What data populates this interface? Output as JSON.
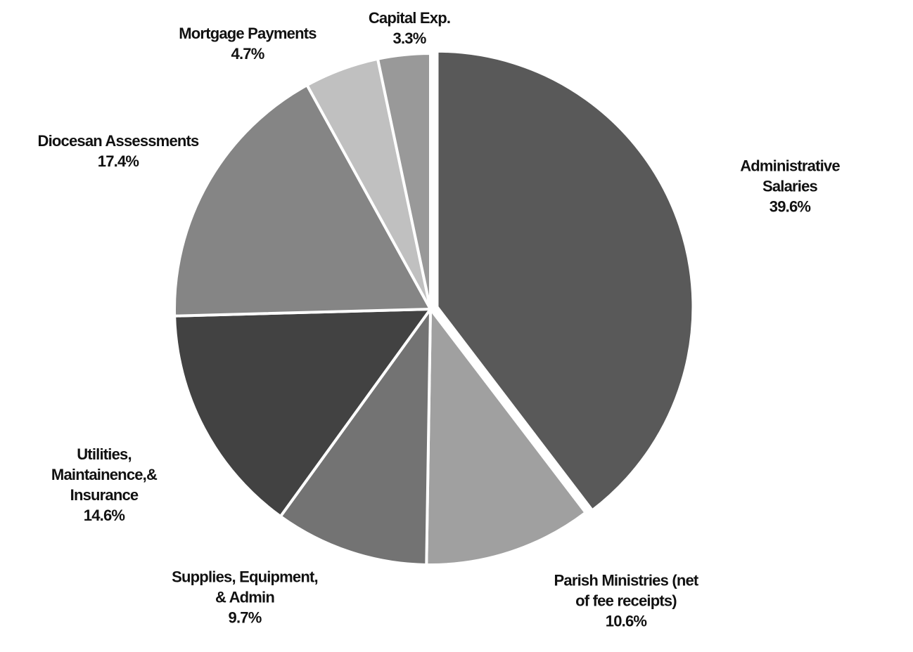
{
  "chart_data": {
    "type": "pie",
    "categories": [
      "Administrative Salaries",
      "Parish Ministries (net\nof fee receipts)",
      "Supplies, Equipment,\n& Admin",
      "Utilities,\nMaintainence,&\nInsurance",
      "Diocesan Assessments",
      "Mortgage Payments",
      "Capital Exp."
    ],
    "values": [
      39.6,
      10.6,
      9.7,
      14.6,
      17.4,
      4.7,
      3.3
    ],
    "value_labels": [
      "39.6%",
      "10.6%",
      "9.7%",
      "14.6%",
      "17.4%",
      "4.7%",
      "3.3%"
    ],
    "colors": [
      "#595959",
      "#a0a0a0",
      "#737373",
      "#424242",
      "#858585",
      "#c0c0c0",
      "#999999"
    ]
  }
}
